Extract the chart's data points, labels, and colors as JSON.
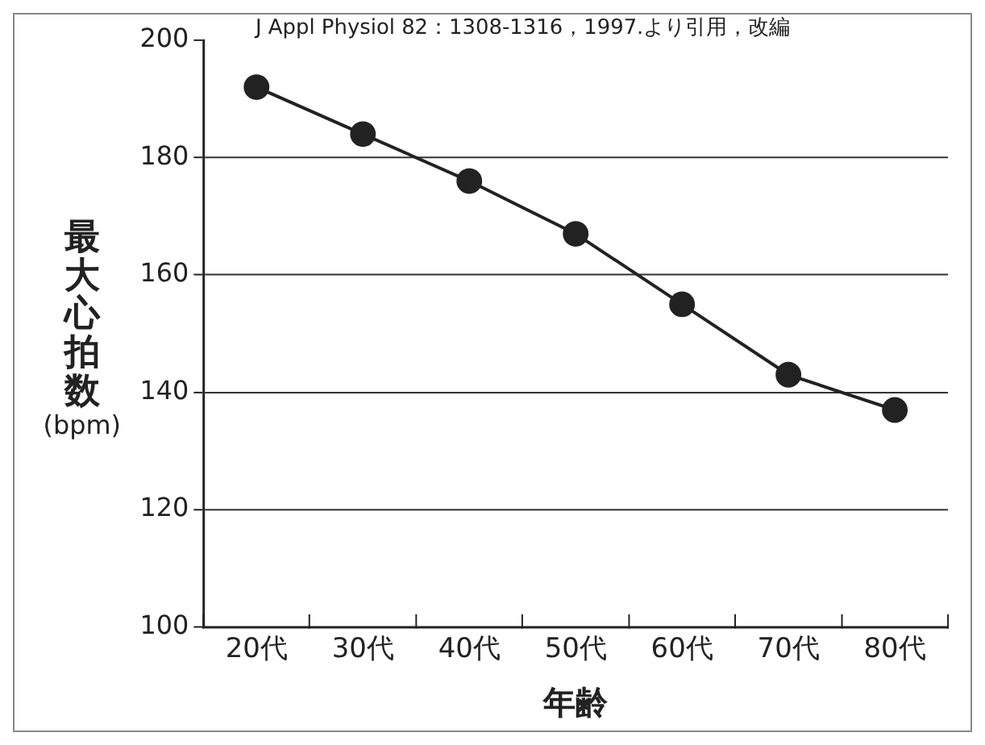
{
  "chart_data": {
    "type": "line",
    "xlabel": "年齢",
    "ylabel": "最大心拍数 (bpm)",
    "annotations": [
      "J Appl Physiol 82：1308-1316，1997.より引用，改編"
    ],
    "categories": [
      "20代",
      "30代",
      "40代",
      "50代",
      "60代",
      "70代",
      "80代"
    ],
    "series": [
      {
        "color": "#222222",
        "values": [
          192,
          184,
          176,
          167,
          155,
          143,
          137
        ]
      }
    ],
    "ylim": [
      100,
      200
    ],
    "yticks": [
      100,
      120,
      140,
      160,
      180,
      200
    ],
    "grid": "y",
    "marker": "circle",
    "line_style": "solid",
    "legend": false
  }
}
